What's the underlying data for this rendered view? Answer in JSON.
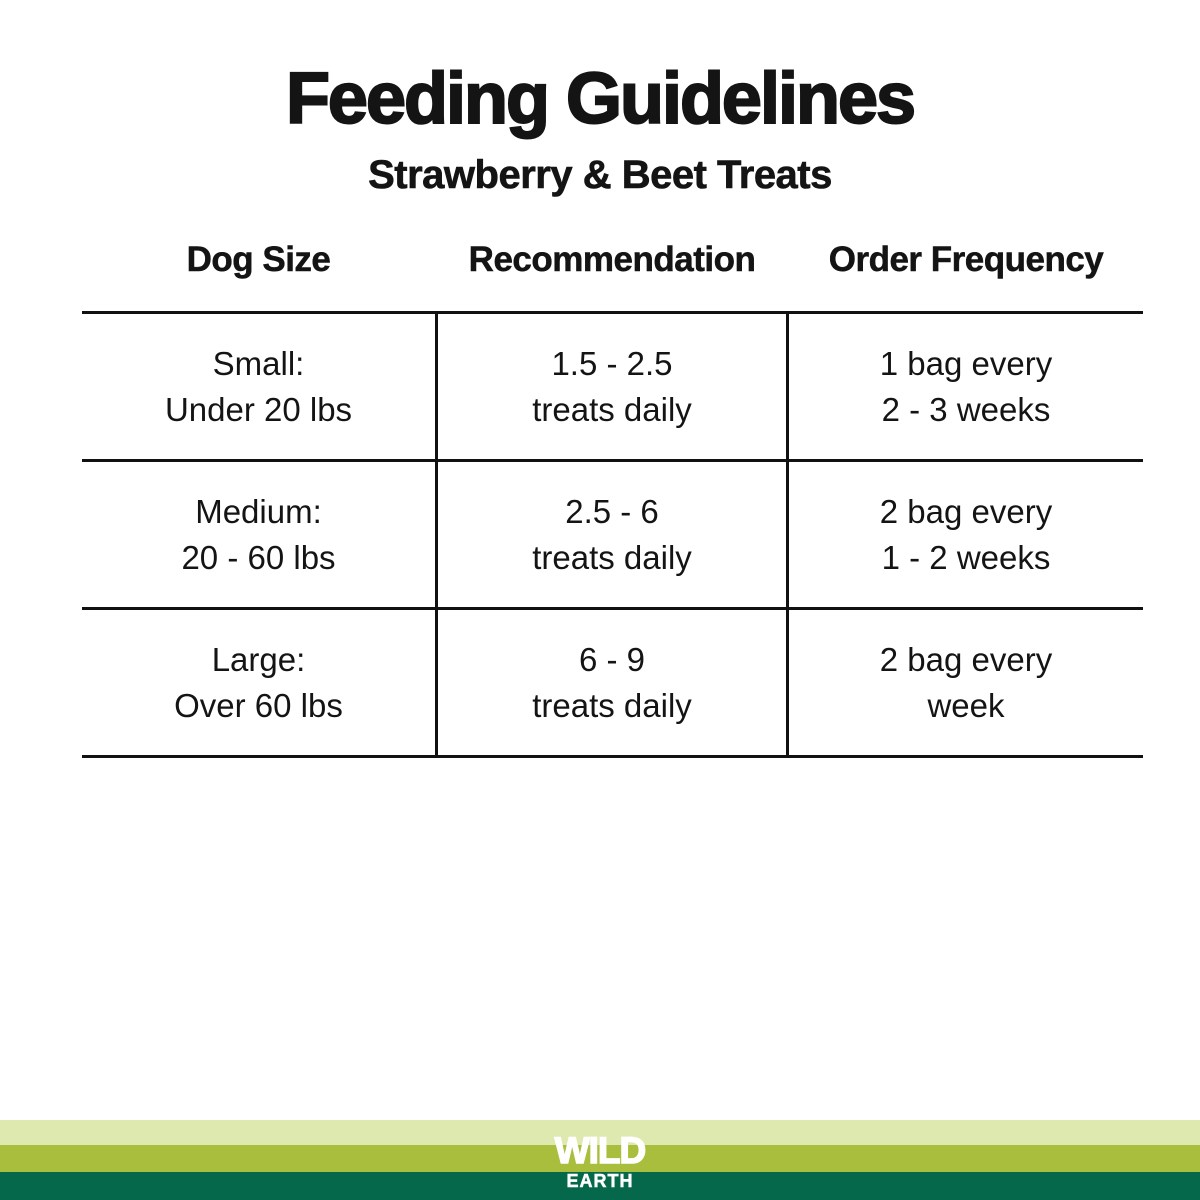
{
  "page": {
    "title": "Feeding Guidelines",
    "subtitle": "Strawberry & Beet Treats"
  },
  "table": {
    "headers": [
      "Dog Size",
      "Recommendation",
      "Order Frequency"
    ],
    "rows": [
      [
        [
          "Small:",
          "Under 20 lbs"
        ],
        [
          "1.5 - 2.5",
          "treats daily"
        ],
        [
          "1 bag every",
          "2 - 3 weeks"
        ]
      ],
      [
        [
          "Medium:",
          "20 - 60 lbs"
        ],
        [
          "2.5 - 6",
          "treats daily"
        ],
        [
          "2 bag every",
          "1 - 2 weeks"
        ]
      ],
      [
        [
          "Large:",
          "Over 60 lbs"
        ],
        [
          "6 - 9",
          "treats daily"
        ],
        [
          "2 bag every",
          "week"
        ]
      ]
    ]
  },
  "chart_data": {
    "type": "table",
    "title": "Feeding Guidelines",
    "subtitle": "Strawberry & Beet Treats",
    "columns": [
      "Dog Size",
      "Recommendation",
      "Order Frequency"
    ],
    "rows": [
      [
        "Small: Under 20 lbs",
        "1.5 - 2.5 treats daily",
        "1 bag every 2 - 3 weeks"
      ],
      [
        "Medium: 20 - 60 lbs",
        "2.5 - 6 treats daily",
        "2 bag every 1 - 2 weeks"
      ],
      [
        "Large: Over 60 lbs",
        "6 - 9 treats daily",
        "2 bag every week"
      ]
    ]
  },
  "footer": {
    "brand_name": "WILD",
    "brand_subname": "EARTH",
    "colors": {
      "light_green": "#dee9af",
      "medium_green": "#a9be3c",
      "dark_green": "#05684a"
    }
  }
}
